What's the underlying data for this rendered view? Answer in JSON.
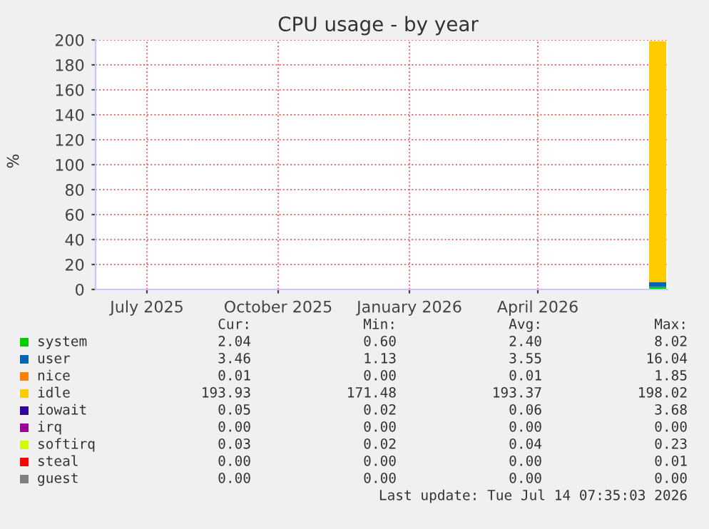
{
  "chart_data": {
    "type": "area",
    "stacked": true,
    "title": "CPU usage - by year",
    "ylabel": "%",
    "x": [
      "2026-07-02",
      "2026-07-14"
    ],
    "series": [
      {
        "name": "system",
        "color": "#00cc00",
        "values": [
          2,
          2
        ]
      },
      {
        "name": "user",
        "color": "#0066b3",
        "values": [
          4,
          4
        ]
      },
      {
        "name": "nice",
        "color": "#ff8000",
        "values": [
          null,
          null
        ]
      },
      {
        "name": "idle",
        "color": "#ffcc00",
        "values": [
          193,
          193
        ]
      },
      {
        "name": "iowait",
        "color": "#330099",
        "values": [
          null,
          null
        ]
      },
      {
        "name": "irq",
        "color": "#990099",
        "values": [
          null,
          null
        ]
      },
      {
        "name": "softirq",
        "color": "#ccff00",
        "values": [
          null,
          null
        ]
      },
      {
        "name": "steal",
        "color": "#ff0000",
        "values": [
          null,
          null
        ]
      },
      {
        "name": "guest",
        "color": "#808080",
        "values": [
          null,
          null
        ]
      }
    ],
    "xlim": [
      "2025-06-09",
      "2026-07-15"
    ],
    "xticks": [
      {
        "value": "2025-07-15",
        "label": "July 2025"
      },
      {
        "value": "2025-10-15",
        "label": "October 2025"
      },
      {
        "value": "2026-01-15",
        "label": "January 2026"
      },
      {
        "value": "2026-04-15",
        "label": "April 2026"
      }
    ],
    "ylim": [
      0,
      200
    ],
    "yticks": [
      0,
      20,
      40,
      60,
      80,
      100,
      120,
      140,
      160,
      180,
      200
    ],
    "grid": true,
    "legend": "bottom",
    "annotations": [
      "Cur:",
      "Min:",
      "Avg:",
      "Max:",
      "2.04",
      "0.60",
      "2.40",
      "8.02",
      "3.46",
      "1.13",
      "3.55",
      "16.04",
      "0.01",
      "0.00",
      "0.01",
      "1.85",
      "193.93",
      "171.48",
      "193.37",
      "198.02",
      "0.05",
      "0.02",
      "0.06",
      "3.68",
      "0.00",
      "0.00",
      "0.00",
      "0.00",
      "0.03",
      "0.02",
      "0.04",
      "0.23",
      "0.00",
      "0.00",
      "0.00",
      "0.01",
      "0.00",
      "0.00",
      "0.00",
      "0.00",
      "Last update: Tue Jul 14 07:35:03 2026"
    ]
  }
}
